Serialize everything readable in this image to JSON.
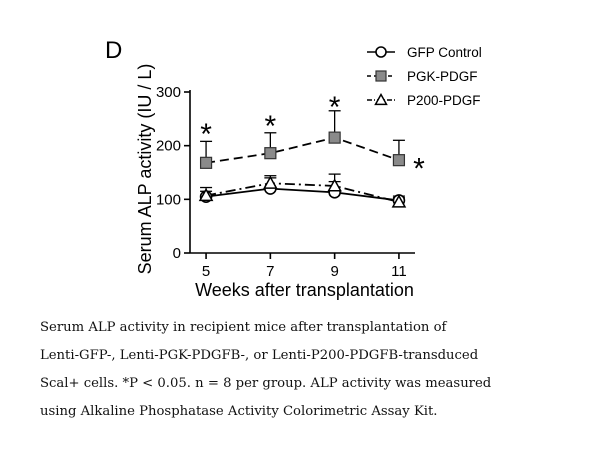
{
  "panel_label": "D",
  "chart_data": {
    "type": "line",
    "xlabel": "Weeks after transplantation",
    "ylabel": "Serum ALP activity (IU / L)",
    "x": [
      5,
      7,
      9,
      11
    ],
    "x_ticks": [
      "5",
      "7",
      "9",
      "11"
    ],
    "y_ticks": [
      "0",
      "100",
      "200",
      "300"
    ],
    "ylim": [
      0,
      300
    ],
    "xlim": [
      4.5,
      11.5
    ],
    "legend_position": "top-right",
    "series": [
      {
        "name": "GFP Control",
        "values": [
          105,
          120,
          113,
          98
        ],
        "errors": [
          10,
          20,
          20,
          8
        ],
        "marker": "circle-open",
        "line": "solid",
        "color": "#000000"
      },
      {
        "name": "PGK-PDGF",
        "values": [
          168,
          186,
          215,
          173
        ],
        "errors": [
          40,
          38,
          50,
          37
        ],
        "marker": "square-filled",
        "line": "dashed",
        "color": "#000000",
        "fill": "#8a8a8a"
      },
      {
        "name": "P200-PDGF",
        "values": [
          107,
          130,
          125,
          95
        ],
        "errors": [
          15,
          14,
          22,
          8
        ],
        "marker": "triangle-open",
        "line": "dashdot",
        "color": "#000000"
      }
    ],
    "annotations": [
      {
        "text": "*",
        "x": 5,
        "y": 237
      },
      {
        "text": "*",
        "x": 7,
        "y": 252
      },
      {
        "text": "*",
        "x": 9,
        "y": 287
      },
      {
        "text": "*",
        "x": 11,
        "y": 172
      }
    ]
  },
  "caption": "Serum ALP activity in recipient mice after transplantation of\nLenti-GFP-, Lenti-PGK-PDGFB-, or Lenti-P200-PDGFB-transduced\nScal+ cells. *P < 0.05. n = 8 per group. ALP activity was measured\nusing Alkaline Phosphatase Activity Colorimetric Assay Kit."
}
